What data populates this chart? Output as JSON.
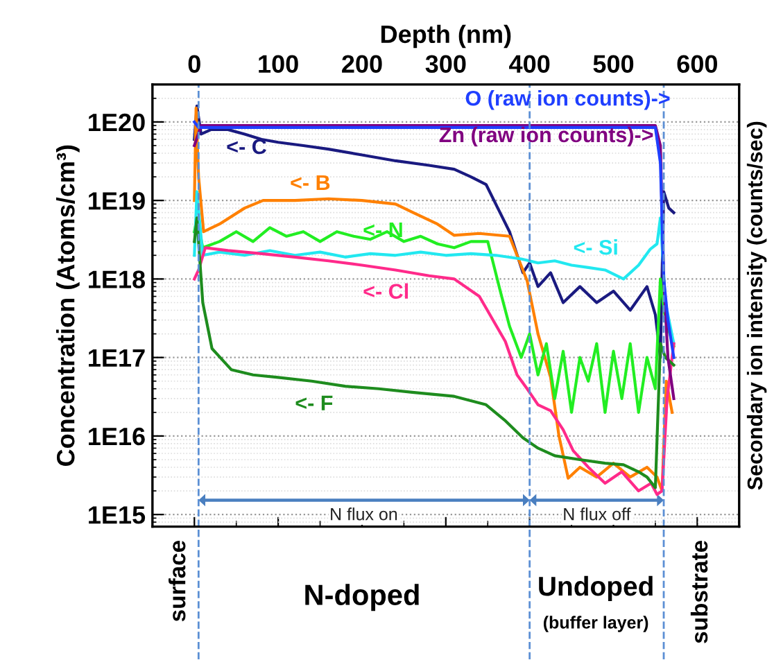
{
  "chart_data": {
    "type": "line",
    "xlabel": "Depth (nm)",
    "ylabel": "Concentration (Atoms/cm³)",
    "y2label": "Secondary ion intensity (counts/sec)",
    "xlim": [
      -50,
      650
    ],
    "xticks": [
      0,
      100,
      200,
      300,
      400,
      500,
      600
    ],
    "ylim": [
      700000000000000.0,
      3e+20
    ],
    "log": true,
    "yticks": [
      {
        "value": 1000000000000000.0,
        "label": "1E15"
      },
      {
        "value": 1e+16,
        "label": "1E16"
      },
      {
        "value": 1e+17,
        "label": "1E17"
      },
      {
        "value": 1e+18,
        "label": "1E18"
      },
      {
        "value": 1e+19,
        "label": "1E19"
      },
      {
        "value": 1e+20,
        "label": "1E20"
      }
    ],
    "grid": "y",
    "legend": false,
    "marker": "none",
    "line_style": "solid",
    "series": [
      {
        "name": "<- C",
        "color": "#1a1a80",
        "x": [
          0,
          3,
          8,
          20,
          40,
          60,
          80,
          100,
          130,
          160,
          200,
          240,
          280,
          310,
          330,
          348,
          362,
          376,
          392,
          400,
          410,
          425,
          440,
          460,
          480,
          500,
          520,
          540,
          550,
          556,
          560,
          566,
          572
        ],
        "values": [
          6e+19,
          1.6e+20,
          7e+19,
          8e+19,
          8e+19,
          7e+19,
          6e+19,
          5.5e+19,
          5e+19,
          4.5e+19,
          3.8e+19,
          3.2e+19,
          2.8e+19,
          2.5e+19,
          2e+19,
          1.6e+19,
          8e+18,
          4e+18,
          1.2e+18,
          1.6e+18,
          8e+17,
          1.2e+18,
          5e+17,
          8e+17,
          5e+17,
          7e+17,
          4e+17,
          8e+17,
          3.5e+17,
          1e+17,
          1.3e+19,
          8e+18,
          7e+18
        ]
      },
      {
        "name": "<- B",
        "color": "#ff8000",
        "x": [
          0,
          2,
          5,
          11,
          30,
          60,
          82,
          120,
          160,
          200,
          240,
          261,
          290,
          310,
          340,
          376,
          397,
          410,
          425,
          435,
          446,
          460,
          480,
          500,
          520,
          540,
          552,
          558,
          563,
          570
        ],
        "values": [
          1e+19,
          1.5e+20,
          2e+19,
          4e+18,
          5e+18,
          8e+18,
          1e+19,
          1e+19,
          1.05e+19,
          1e+19,
          9e+18,
          7e+18,
          5e+18,
          3.6e+18,
          3.8e+18,
          3.5e+18,
          9.5e+17,
          2e+17,
          5.6e+16,
          1e+16,
          2900000000000000.0,
          4000000000000000.0,
          3000000000000000.0,
          4500000000000000.0,
          3000000000000000.0,
          4000000000000000.0,
          3000000000000000.0,
          2000000000000000.0,
          5e+16,
          2e+16
        ]
      },
      {
        "name": "<- N",
        "color": "#22ee22",
        "x": [
          0,
          3,
          10,
          30,
          50,
          70,
          90,
          110,
          130,
          150,
          170,
          190,
          210,
          230,
          250,
          270,
          290,
          310,
          330,
          350,
          365,
          376,
          390,
          400,
          410,
          420,
          430,
          440,
          450,
          460,
          470,
          480,
          490,
          500,
          510,
          520,
          530,
          540,
          550,
          556,
          562,
          572
        ],
        "values": [
          4e+18,
          6e+18,
          2.5e+18,
          3e+18,
          4e+18,
          3e+18,
          4.5e+18,
          3.5e+18,
          4e+18,
          3e+18,
          4e+18,
          3.5e+18,
          3.2e+18,
          4e+18,
          3e+18,
          3.5e+18,
          2.8e+18,
          2.5e+18,
          3e+18,
          3e+18,
          7e+17,
          2.5e+17,
          1e+17,
          2e+17,
          6e+16,
          1.5e+17,
          3e+16,
          1.2e+17,
          2e+16,
          1e+17,
          5e+16,
          1.5e+17,
          2e+16,
          1.2e+17,
          3e+16,
          1.5e+17,
          2e+16,
          1e+17,
          4e+16,
          1e+18,
          3e+17,
          1.4e+17
        ]
      },
      {
        "name": "<- Si",
        "color": "#22e8f0",
        "x": [
          0,
          3,
          10,
          30,
          60,
          90,
          120,
          150,
          180,
          210,
          240,
          270,
          300,
          330,
          360,
          390,
          410,
          430,
          450,
          470,
          490,
          512,
          530,
          544,
          552,
          556,
          562,
          572
        ],
        "values": [
          2e+18,
          1.3e+19,
          2e+18,
          2.2e+18,
          2e+18,
          2.3e+18,
          2e+18,
          2.2e+18,
          1.9e+18,
          2.1e+18,
          2e+18,
          2.2e+18,
          2e+18,
          2.1e+18,
          2e+18,
          1.8e+18,
          1.6e+18,
          1.7e+18,
          1.5e+18,
          1.4e+18,
          1.3e+18,
          1e+18,
          1.5e+18,
          2.4e+18,
          2.8e+18,
          6e+18,
          5e+17,
          1.5e+17
        ]
      },
      {
        "name": "<- Cl",
        "color": "#ff2a8a",
        "x": [
          0,
          5,
          13,
          40,
          80,
          120,
          160,
          200,
          240,
          280,
          310,
          340,
          371,
          385,
          397,
          410,
          425,
          440,
          452,
          470,
          490,
          510,
          530,
          545,
          552,
          558,
          564,
          572
        ],
        "values": [
          1e+18,
          1.3e+18,
          2.5e+18,
          2.3e+18,
          2.1e+18,
          1.9e+18,
          1.7e+18,
          1.5e+18,
          1.3e+18,
          1.1e+18,
          1e+18,
          6e+17,
          1.6e+17,
          6e+16,
          4e+16,
          2.5e+16,
          2.1e+16,
          1.2e+16,
          6500000000000000.0,
          4000000000000000.0,
          2500000000000000.0,
          3500000000000000.0,
          2000000000000000.0,
          2500000000000000.0,
          1800000000000000.0,
          2000000000000000.0,
          3e+16,
          1.5e+17
        ]
      },
      {
        "name": "<- F",
        "color": "#1e8c1e",
        "x": [
          0,
          3,
          10,
          21,
          44,
          70,
          98,
          140,
          180,
          220,
          260,
          310,
          348,
          370,
          392,
          410,
          430,
          460,
          490,
          512,
          530,
          540,
          550,
          556,
          562,
          572
        ],
        "values": [
          3e+18,
          6e+18,
          5e+17,
          1.3e+17,
          7e+16,
          6e+16,
          5.6e+16,
          5e+16,
          4.3e+16,
          4e+16,
          3.6e+16,
          3.2e+16,
          2.5e+16,
          1.6e+16,
          9500000000000000.0,
          7000000000000000.0,
          5600000000000000.0,
          5000000000000000.0,
          4500000000000000.0,
          4300000000000000.0,
          3500000000000000.0,
          3000000000000000.0,
          2200000000000000.0,
          1.5e+17,
          1e+17,
          8e+16
        ]
      },
      {
        "name": "Zn (raw ion counts)->",
        "color": "#800080",
        "x": [
          0,
          8,
          100,
          200,
          300,
          400,
          500,
          550,
          556,
          560,
          565,
          572
        ],
        "values": [
          5e+19,
          9e+19,
          9e+19,
          9e+19,
          9e+19,
          9e+19,
          9e+19,
          9e+19,
          5e+19,
          1e+18,
          1e+17,
          3e+16
        ]
      },
      {
        "name": "O (raw ion counts)->",
        "color": "#1f3fff",
        "x": [
          0,
          5,
          100,
          200,
          300,
          400,
          500,
          550,
          556,
          560,
          565,
          572
        ],
        "values": [
          1e+20,
          8.5e+19,
          8.5e+19,
          8.5e+19,
          8.5e+19,
          8.5e+19,
          8.5e+19,
          8.5e+19,
          3e+19,
          1e+18,
          3e+17,
          1e+17
        ]
      }
    ],
    "ref_lines": [
      {
        "axis": "x",
        "value": 5,
        "color": "#5b8fd4",
        "line_style": "dashed"
      },
      {
        "axis": "x",
        "value": 400,
        "color": "#5b8fd4",
        "line_style": "dashed"
      },
      {
        "axis": "x",
        "value": 560,
        "color": "#5b8fd4",
        "line_style": "dashed"
      }
    ],
    "annotations": [
      "N flux on",
      "N flux off",
      "surface",
      "N-doped",
      "Undoped",
      "(buffer layer)",
      "substrate"
    ]
  }
}
